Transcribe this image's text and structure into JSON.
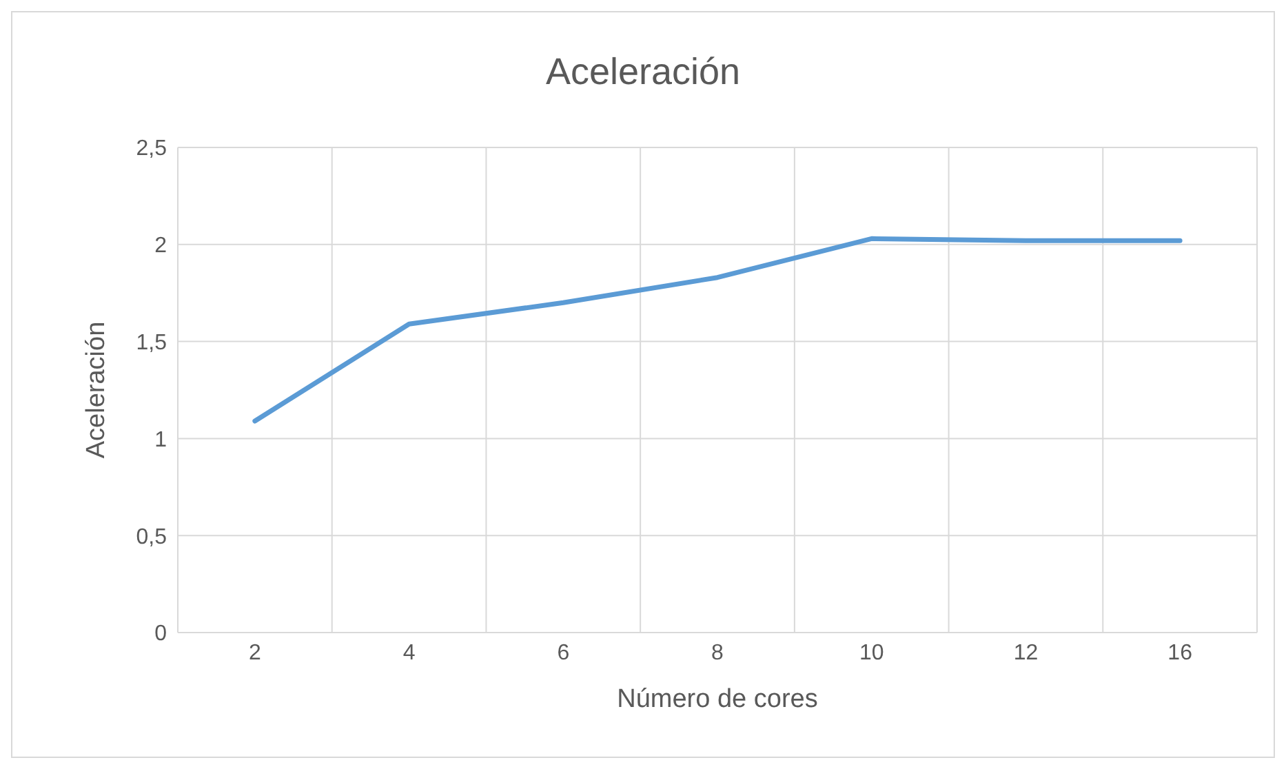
{
  "chart_data": {
    "type": "line",
    "title": "Aceleración",
    "xlabel": "Número de cores",
    "ylabel": "Aceleración",
    "categories": [
      "2",
      "4",
      "6",
      "8",
      "10",
      "12",
      "16"
    ],
    "series": [
      {
        "color": "#5b9bd5",
        "values": [
          1.09,
          1.59,
          1.7,
          1.83,
          2.03,
          2.02,
          2.02
        ]
      }
    ],
    "ylim": [
      0,
      2.5
    ],
    "yticks": [
      {
        "value": 0,
        "label": "0"
      },
      {
        "value": 0.5,
        "label": "0,5"
      },
      {
        "value": 1,
        "label": "1"
      },
      {
        "value": 1.5,
        "label": "1,5"
      },
      {
        "value": 2,
        "label": "2"
      },
      {
        "value": 2.5,
        "label": "2,5"
      }
    ],
    "grid": true,
    "legend": false,
    "marker": "none",
    "line_style": "solid"
  }
}
